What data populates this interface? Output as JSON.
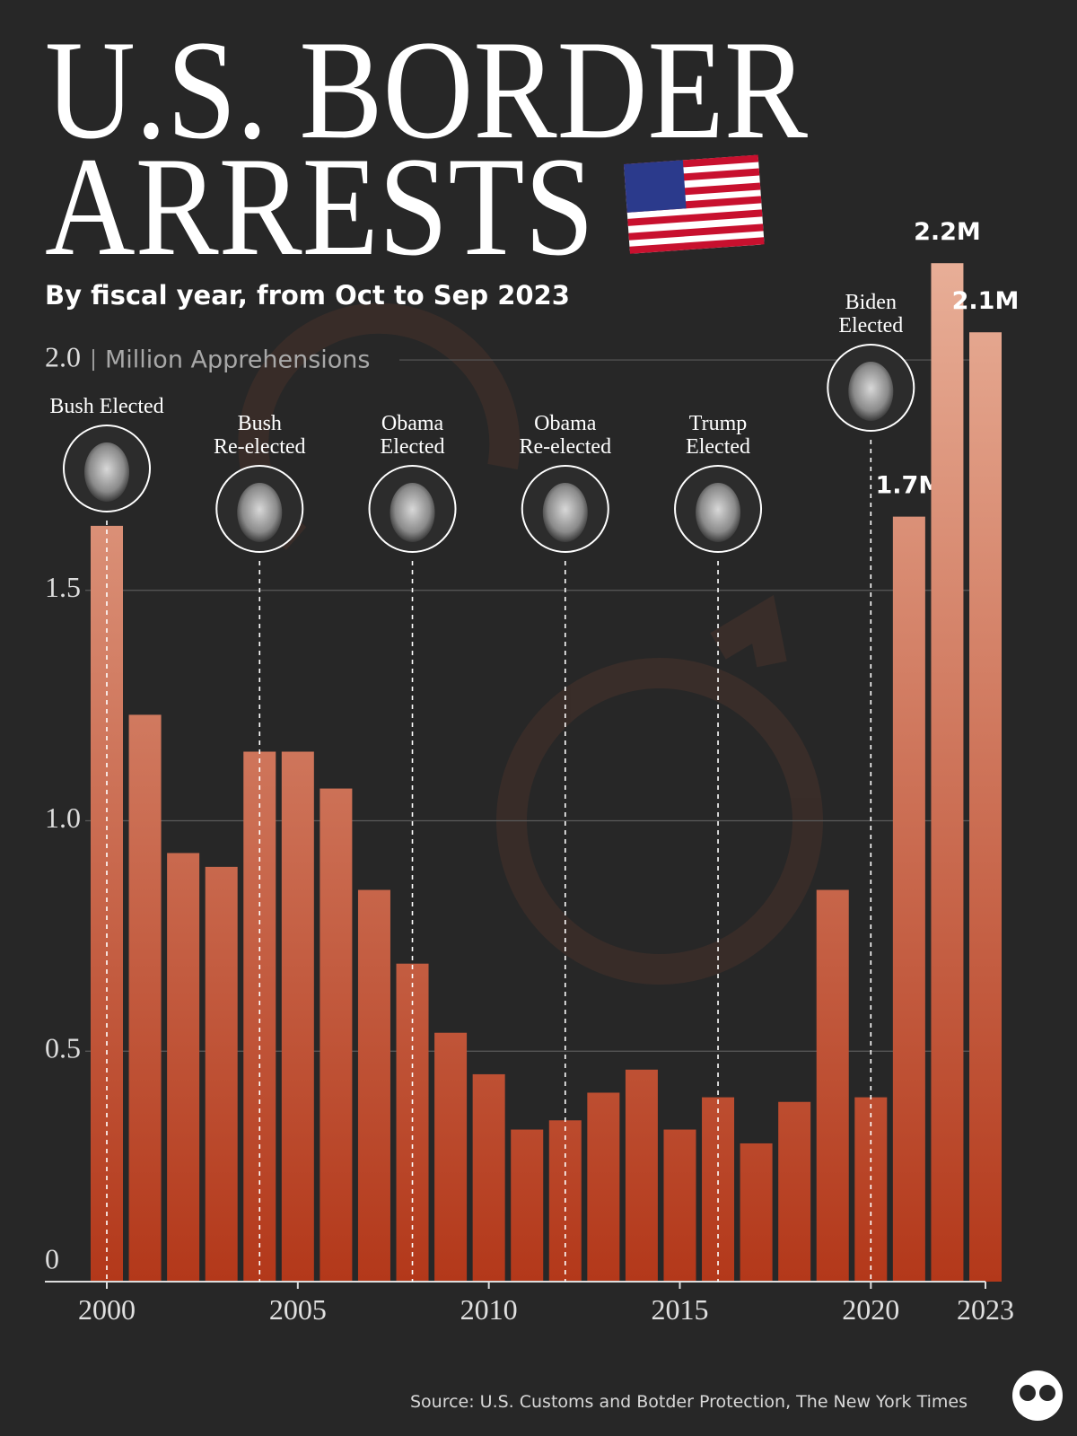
{
  "chart_data": {
    "type": "bar",
    "title": [
      "U.S. BORDER",
      "ARRESTS"
    ],
    "subtitle": "By fiscal year, from Oct to Sep 2023",
    "y_label": "Million Apprehensions",
    "x": [
      2000,
      2001,
      2002,
      2003,
      2004,
      2005,
      2006,
      2007,
      2008,
      2009,
      2010,
      2011,
      2012,
      2013,
      2014,
      2015,
      2016,
      2017,
      2018,
      2019,
      2020,
      2021,
      2022,
      2023
    ],
    "values": [
      1.64,
      1.23,
      0.93,
      0.9,
      1.15,
      1.15,
      1.07,
      0.85,
      0.69,
      0.54,
      0.45,
      0.33,
      0.35,
      0.41,
      0.46,
      0.33,
      0.4,
      0.3,
      0.39,
      0.85,
      0.4,
      1.66,
      2.21,
      2.06
    ],
    "value_labels": [
      null,
      null,
      null,
      null,
      null,
      null,
      null,
      null,
      null,
      null,
      null,
      null,
      null,
      null,
      null,
      null,
      null,
      null,
      null,
      null,
      null,
      "1.7M",
      "2.2M",
      "2.1M"
    ],
    "color": "#b3381a",
    "xlim": [
      2000,
      2023
    ],
    "xticks": [
      2000,
      2005,
      2010,
      2015,
      2020,
      2023
    ],
    "ylim": [
      0,
      2.3
    ],
    "yticks": [
      0,
      0.5,
      {
        "value": 1,
        "label": "1.0"
      },
      1.5,
      {
        "value": 2,
        "label": "2.0"
      }
    ],
    "grid": true,
    "annotations": [
      {
        "x": 2000,
        "label": [
          "Bush Elected"
        ]
      },
      {
        "x": 2004,
        "label": [
          "Bush",
          "Re-elected"
        ]
      },
      {
        "x": 2008,
        "label": [
          "Obama",
          "Elected"
        ]
      },
      {
        "x": 2012,
        "label": [
          "Obama",
          "Re-elected"
        ]
      },
      {
        "x": 2016,
        "label": [
          "Trump",
          "Elected"
        ]
      },
      {
        "x": 2020,
        "label": [
          "Biden",
          "Elected"
        ]
      }
    ],
    "source": "Source: U.S. Customs and Botder Protection, The New York Times"
  }
}
